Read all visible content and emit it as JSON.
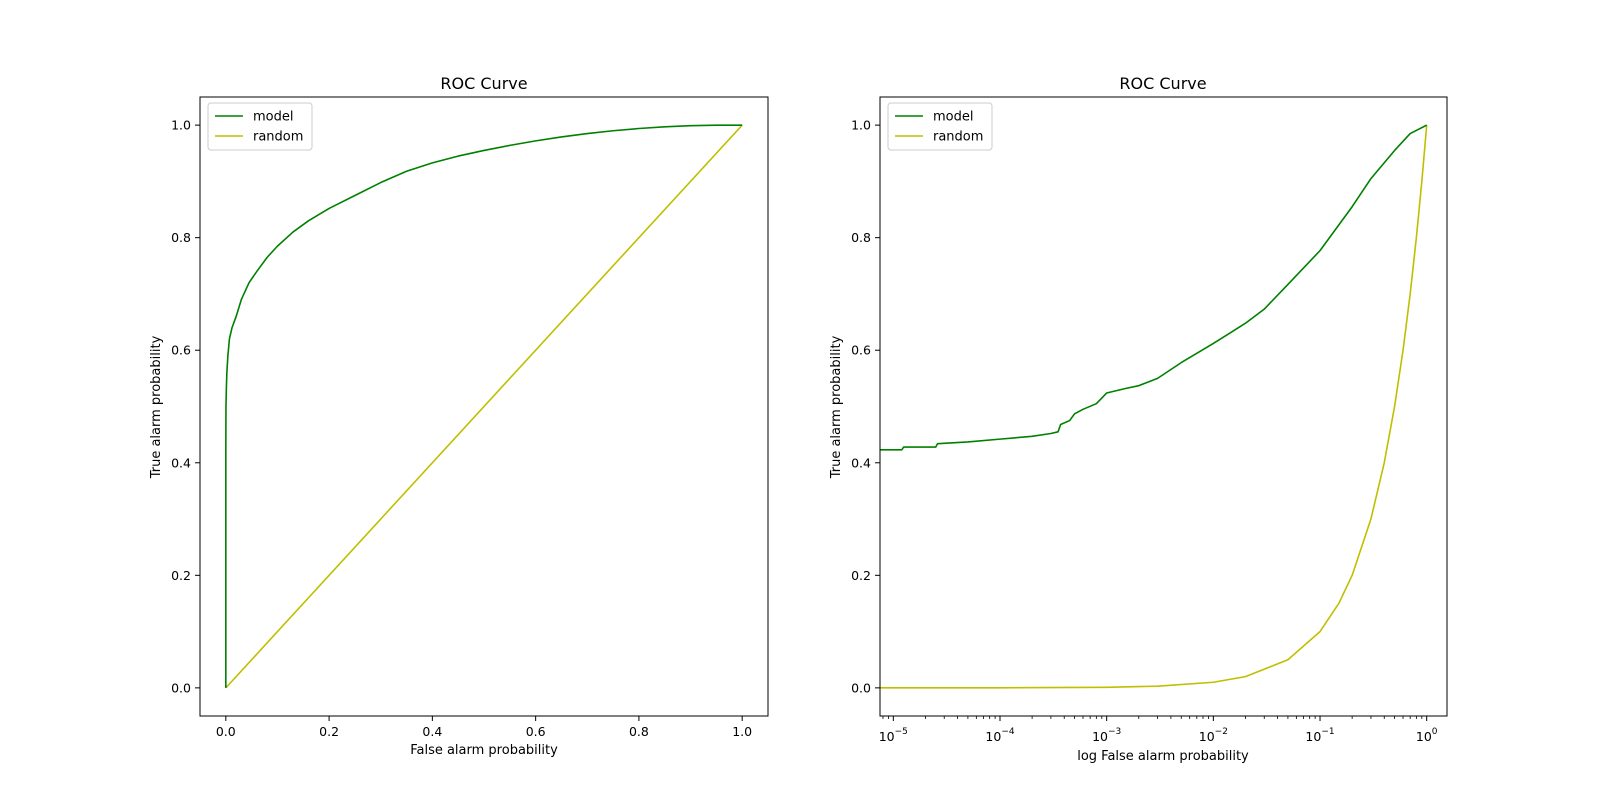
{
  "colors": {
    "model": "#008000",
    "random": "#bfbf00",
    "axis": "#000000",
    "background": "#ffffff"
  },
  "chart_data": [
    {
      "type": "line",
      "title": "ROC Curve",
      "xlabel": "False alarm probability",
      "ylabel": "True alarm probability",
      "xscale": "linear",
      "xlim": [
        -0.05,
        1.05
      ],
      "ylim": [
        -0.05,
        1.05
      ],
      "xticks": [
        0.0,
        0.2,
        0.4,
        0.6,
        0.8,
        1.0
      ],
      "xtick_labels": [
        "0.0",
        "0.2",
        "0.4",
        "0.6",
        "0.8",
        "1.0"
      ],
      "yticks": [
        0.0,
        0.2,
        0.4,
        0.6,
        0.8,
        1.0
      ],
      "ytick_labels": [
        "0.0",
        "0.2",
        "0.4",
        "0.6",
        "0.8",
        "1.0"
      ],
      "grid": false,
      "legend": "upper-left",
      "series": [
        {
          "name": "model",
          "color": "#008000",
          "x": [
            0,
            0,
            0.0003,
            0.001,
            0.002,
            0.004,
            0.007,
            0.012,
            0.02,
            0.03,
            0.045,
            0.06,
            0.08,
            0.1,
            0.13,
            0.16,
            0.2,
            0.25,
            0.3,
            0.35,
            0.4,
            0.45,
            0.5,
            0.55,
            0.6,
            0.65,
            0.7,
            0.75,
            0.8,
            0.85,
            0.9,
            0.95,
            1.0
          ],
          "y": [
            0,
            0.42,
            0.5,
            0.53,
            0.56,
            0.59,
            0.62,
            0.64,
            0.66,
            0.69,
            0.72,
            0.74,
            0.765,
            0.785,
            0.81,
            0.83,
            0.852,
            0.875,
            0.898,
            0.918,
            0.933,
            0.945,
            0.955,
            0.964,
            0.972,
            0.979,
            0.985,
            0.99,
            0.994,
            0.997,
            0.999,
            1.0,
            1.0
          ]
        },
        {
          "name": "random",
          "color": "#bfbf00",
          "x": [
            0,
            1
          ],
          "y": [
            0,
            1
          ]
        }
      ]
    },
    {
      "type": "line",
      "title": "ROC Curve",
      "xlabel": "log False alarm probability",
      "ylabel": "True alarm probability",
      "xscale": "log",
      "xlim": [
        7.5e-06,
        1.55
      ],
      "ylim": [
        -0.05,
        1.05
      ],
      "xticks": [
        1e-05,
        0.0001,
        0.001,
        0.01,
        0.1,
        1
      ],
      "xtick_bases": [
        "10",
        "10",
        "10",
        "10",
        "10",
        "10"
      ],
      "xtick_exponents": [
        "−5",
        "−4",
        "−3",
        "−2",
        "−1",
        "0"
      ],
      "yticks": [
        0.0,
        0.2,
        0.4,
        0.6,
        0.8,
        1.0
      ],
      "ytick_labels": [
        "0.0",
        "0.2",
        "0.4",
        "0.6",
        "0.8",
        "1.0"
      ],
      "grid": false,
      "legend": "upper-left",
      "series": [
        {
          "name": "model",
          "color": "#008000",
          "x": [
            7.5e-06,
            1.2e-05,
            1.25e-05,
            2.5e-05,
            2.6e-05,
            5e-05,
            0.0001,
            0.0002,
            0.0003,
            0.00035,
            0.00037,
            0.00045,
            0.0005,
            0.0006,
            0.0008,
            0.0009,
            0.001,
            0.0015,
            0.002,
            0.003,
            0.005,
            0.01,
            0.015,
            0.02,
            0.03,
            0.05,
            0.1,
            0.2,
            0.3,
            0.5,
            0.7,
            1
          ],
          "y": [
            0.423,
            0.423,
            0.428,
            0.428,
            0.434,
            0.437,
            0.442,
            0.447,
            0.452,
            0.455,
            0.468,
            0.475,
            0.487,
            0.495,
            0.505,
            0.515,
            0.524,
            0.532,
            0.537,
            0.55,
            0.578,
            0.612,
            0.633,
            0.648,
            0.673,
            0.717,
            0.777,
            0.855,
            0.905,
            0.955,
            0.985,
            1.0
          ]
        },
        {
          "name": "random",
          "color": "#bfbf00",
          "x": [
            7.5e-06,
            1e-05,
            0.0001,
            0.001,
            0.003,
            0.01,
            0.02,
            0.05,
            0.1,
            0.15,
            0.2,
            0.3,
            0.4,
            0.5,
            0.6,
            0.7,
            0.8,
            0.9,
            1
          ],
          "y": [
            7.5e-06,
            1e-05,
            0.0001,
            0.001,
            0.003,
            0.01,
            0.02,
            0.05,
            0.1,
            0.15,
            0.2,
            0.3,
            0.4,
            0.5,
            0.6,
            0.7,
            0.8,
            0.9,
            1
          ]
        }
      ]
    }
  ]
}
